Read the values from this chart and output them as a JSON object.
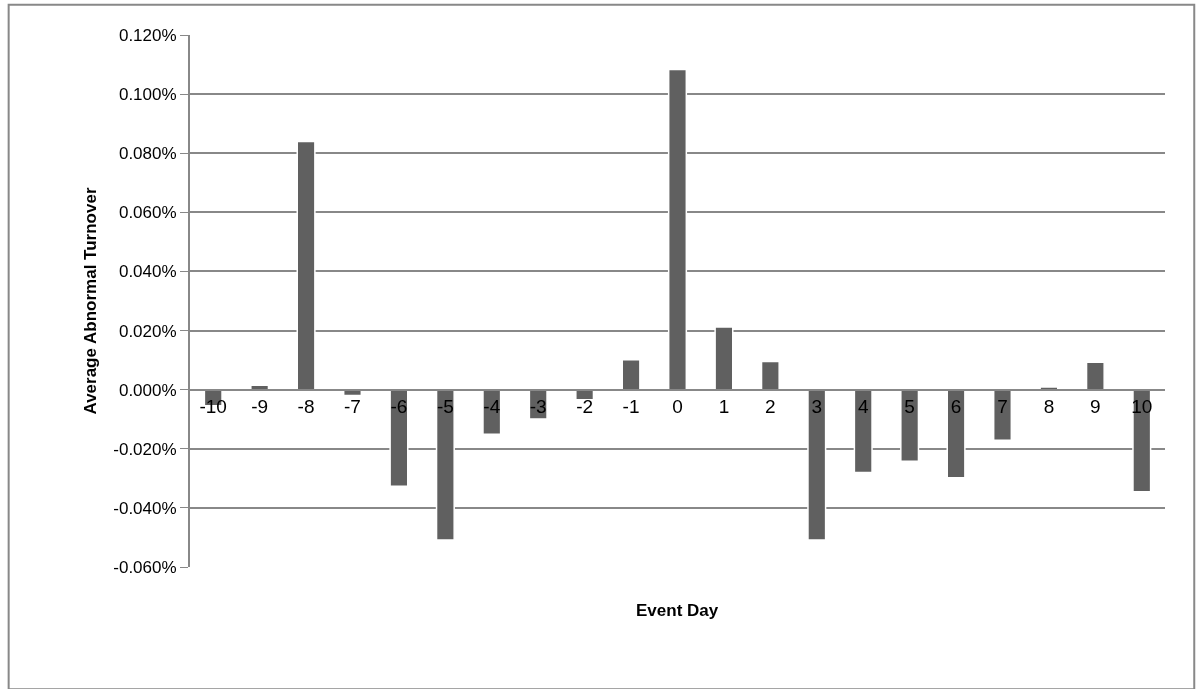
{
  "chart_data": {
    "type": "bar",
    "xlabel": "Event Day",
    "ylabel": "Average Abnormal Turnover",
    "categories": [
      "-10",
      "-9",
      "-8",
      "-7",
      "-6",
      "-5",
      "-4",
      "-3",
      "-2",
      "-1",
      "0",
      "1",
      "2",
      "3",
      "4",
      "5",
      "6",
      "7",
      "8",
      "9",
      "10"
    ],
    "values": [
      -0.0054,
      0.0015,
      0.084,
      -0.002,
      -0.0327,
      -0.0509,
      -0.0151,
      -0.0099,
      -0.0034,
      0.0101,
      0.1083,
      0.0212,
      0.0095,
      -0.0509,
      -0.028,
      -0.0242,
      -0.0298,
      -0.0171,
      0.0009,
      0.0093,
      -0.0345
    ],
    "color": "#606060",
    "ylim": [
      -0.06,
      0.12
    ],
    "yticks": [
      {
        "value": -0.06,
        "label": "-0.060%"
      },
      {
        "value": -0.04,
        "label": "-0.040%"
      },
      {
        "value": -0.02,
        "label": "-0.020%"
      },
      {
        "value": 0,
        "label": "0.000%"
      },
      {
        "value": 0.02,
        "label": "0.020%"
      },
      {
        "value": 0.04,
        "label": "0.040%"
      },
      {
        "value": 0.06,
        "label": "0.060%"
      },
      {
        "value": 0.08,
        "label": "0.080%"
      },
      {
        "value": 0.1,
        "label": "0.100%"
      },
      {
        "value": 0.12,
        "label": "0.120%"
      }
    ],
    "grid": "y"
  }
}
